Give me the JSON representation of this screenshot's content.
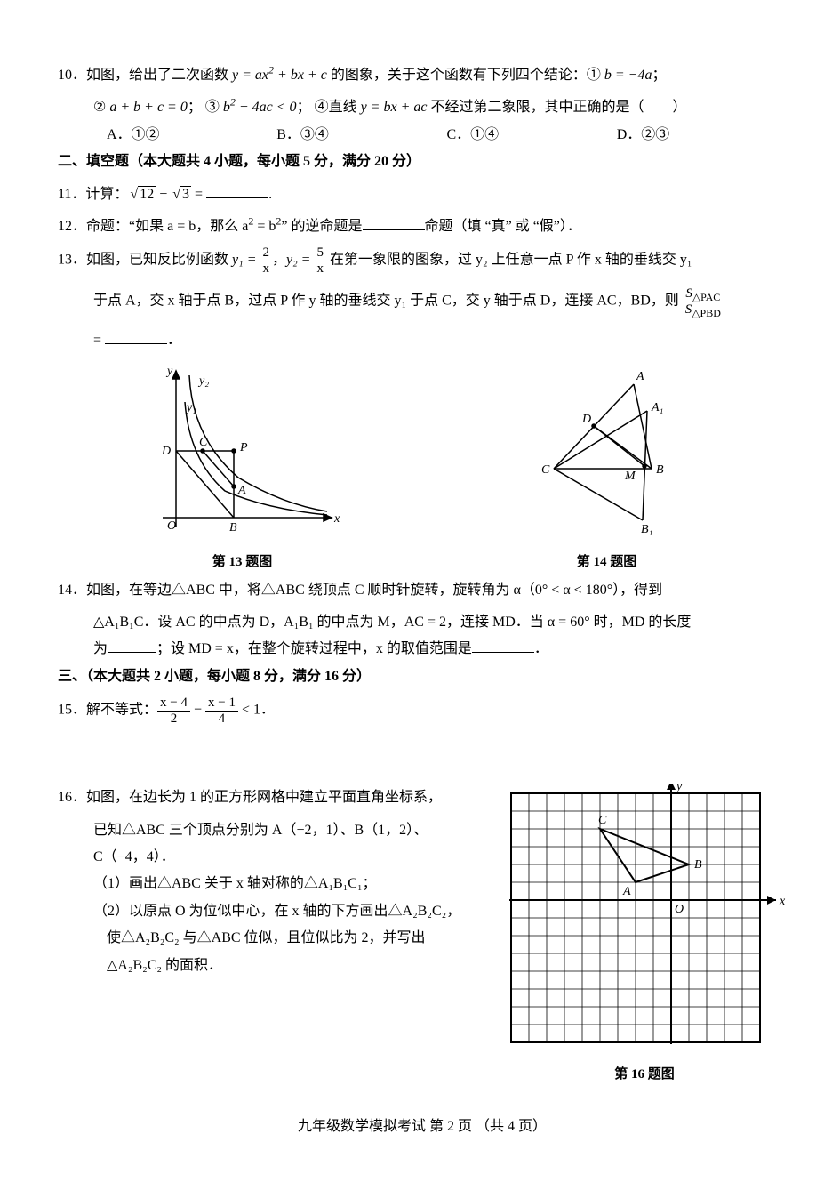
{
  "q10": {
    "num": "10．",
    "stem_a": "如图，给出了二次函数 ",
    "formula1_lhs": "y = ax",
    "formula1_sup": "2",
    "formula1_rhs": " + bx + c",
    "stem_b": " 的图象，关于这个函数有下列四个结论：① ",
    "concl1": "b = −4a",
    "semicolon": "；",
    "line2_a": "② ",
    "concl2": "a + b + c = 0",
    "line2_b": "；  ③ ",
    "concl3_lhs": "b",
    "concl3_sup": "2",
    "concl3_rhs": " − 4ac < 0",
    "line2_c": "；  ④直线 ",
    "concl4": "y = bx + ac",
    "line2_d": " 不经过第二象限，其中正确的是（　　）",
    "opts": {
      "A": "A．①②",
      "B": "B．③④",
      "C": "C．①④",
      "D": "D．②③"
    }
  },
  "sec2": "二、填空题（本大题共 4 小题，每小题 5 分，满分 20 分）",
  "q11": {
    "num": "11．",
    "stem_a": "计算：",
    "sqrt1": "12",
    "minus": " − ",
    "sqrt2": "3",
    "stem_b": " = ",
    "period": "."
  },
  "q12": {
    "num": "12．",
    "stem_a": "命题：“如果 a = b，那么 a",
    "sup1": "2",
    "mid": " = b",
    "sup2": "2",
    "stem_b": "” 的逆命题是",
    "stem_c": "命题（填 “真” 或 “假”）．"
  },
  "q13": {
    "num": "13．",
    "stem_a": "如图，已知反比例函数 ",
    "y1": "y₁ = ",
    "f1num": "2",
    "f1den": "x",
    "comma": "，",
    "y2": "y₂ = ",
    "f2num": "5",
    "f2den": "x",
    "stem_b": " 在第一象限的图象，过 y₂ 上任意一点 P 作 x 轴的垂线交 y₁",
    "line2a": "于点 A，交 x 轴于点 B，过点 P 作 y 轴的垂线交 y₁ 于点 C，交 y 轴于点 D，连接 AC，BD，则 ",
    "ratio_num": "S",
    "ratio_num_sub": "△PAC",
    "ratio_den": "S",
    "ratio_den_sub": "△PBD",
    "line3": " = ",
    "period": "．",
    "figcap": "第 13 题图",
    "fig": {
      "axis_color": "#000",
      "curve_color": "#000",
      "labels": {
        "O": "O",
        "B": "B",
        "A": "A",
        "P": "P",
        "C": "C",
        "D": "D",
        "x": "x",
        "y": "y",
        "y1": "y₁",
        "y2": "y₂"
      }
    }
  },
  "q14": {
    "num": "14．",
    "stem_a": "如图，在等边△ABC 中，将△ABC 绕顶点 C 顺时针旋转，旋转角为 α（0° < α < 180°），得到",
    "line2": "△A₁B₁C．设 AC 的中点为 D，A₁B₁ 的中点为 M，AC = 2，连接 MD．当 α = 60° 时，MD 的长度",
    "line3a": "为",
    "line3b": "；设 MD = x，在整个旋转过程中，x 的取值范围是",
    "period": "．",
    "figcap": "第 14 题图",
    "fig": {
      "labels": {
        "A": "A",
        "B": "B",
        "C": "C",
        "A1": "A₁",
        "B1": "B₁",
        "D": "D",
        "M": "M"
      }
    }
  },
  "sec3": "三、（本大题共 2 小题，每小题 8 分，满分 16 分）",
  "q15": {
    "num": "15．",
    "stem": "解不等式：",
    "f1num": "x − 4",
    "f1den": "2",
    "minus": " − ",
    "f2num": "x − 1",
    "f2den": "4",
    "lt": " < 1．"
  },
  "q16": {
    "num": "16．",
    "stem_a": "如图，在边长为 1 的正方形网格中建立平面直角坐标系，",
    "line2": "已知△ABC 三个顶点分别为 A（−2，1）、B（1，2）、",
    "line3": "C（−4，4）．",
    "sub1": "（1）画出△ABC 关于 x 轴对称的△A₁B₁C₁；",
    "sub2a": "（2）以原点 O 为位似中心，在 x 轴的下方画出△A₂B₂C₂，",
    "sub2b": "使△A₂B₂C₂ 与△ABC 位似，且位似比为 2，并写出",
    "sub2c": "△A₂B₂C₂ 的面积．",
    "figcap": "第 16 题图",
    "fig": {
      "grid_color": "#000",
      "axis_color": "#000",
      "cols": 14,
      "rows": 14,
      "origin_col": 9,
      "origin_row": 6,
      "A": [
        -2,
        1
      ],
      "B": [
        1,
        2
      ],
      "C": [
        -4,
        4
      ],
      "labels": {
        "O": "O",
        "x": "x",
        "y": "y",
        "A": "A",
        "B": "B",
        "C": "C"
      }
    }
  },
  "footer": "九年级数学模拟考试  第 2 页  （共 4 页）"
}
